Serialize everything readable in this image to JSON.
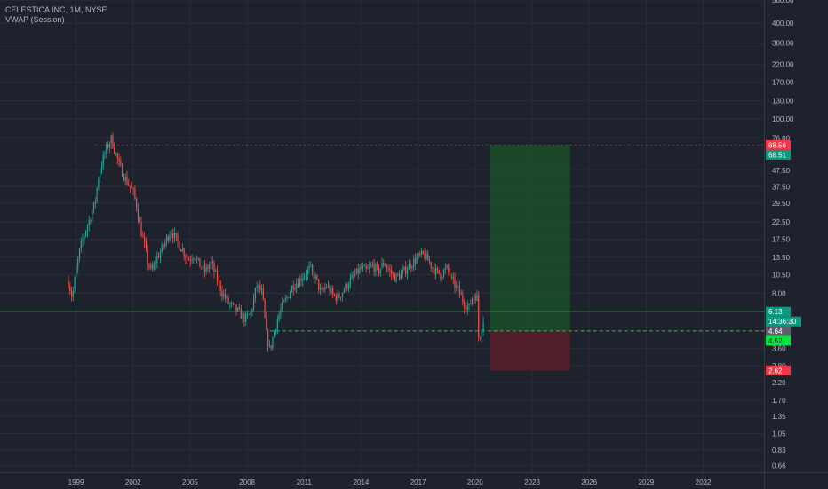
{
  "symbol": {
    "title": "CELESTICA INC, 1M, NYSE",
    "indicator": "VWAP (Session)"
  },
  "colors": {
    "background": "#1e222d",
    "up": "#26a69a",
    "down": "#ef5350",
    "grid": "#2a2e39",
    "axis_text": "#b2b5be",
    "profit_zone": "#1b4d2b",
    "loss_zone": "#5a1f2a",
    "resistance_line": "#c2185b",
    "support_line": "#4caf50",
    "current_price_line": "#4caf50"
  },
  "chart_data": {
    "type": "candlestick",
    "y_scale": "log",
    "ylim": [
      0.6,
      560
    ],
    "xlim": [
      1995,
      2035.2
    ],
    "y_ticks": [
      "560.00",
      "400.00",
      "300.00",
      "220.00",
      "170.00",
      "130.00",
      "100.00",
      "76.00",
      "47.50",
      "37.50",
      "29.50",
      "22.50",
      "17.50",
      "13.50",
      "10.50",
      "8.00",
      "3.60",
      "2.80",
      "2.20",
      "1.70",
      "1.35",
      "1.05",
      "0.83",
      "0.66"
    ],
    "x_ticks": [
      {
        "label": "1999",
        "x": 1999
      },
      {
        "label": "2002",
        "x": 2002
      },
      {
        "label": "2005",
        "x": 2005
      },
      {
        "label": "2008",
        "x": 2008
      },
      {
        "label": "2011",
        "x": 2011
      },
      {
        "label": "2014",
        "x": 2014
      },
      {
        "label": "2017",
        "x": 2017
      },
      {
        "label": "2020",
        "x": 2020
      },
      {
        "label": "2023",
        "x": 2023
      },
      {
        "label": "2026",
        "x": 2026
      },
      {
        "label": "2029",
        "x": 2029
      },
      {
        "label": "2032",
        "x": 2032
      }
    ],
    "price_path": [
      [
        1998.6,
        9.5
      ],
      [
        1998.8,
        7.5
      ],
      [
        1999.0,
        11
      ],
      [
        1999.2,
        15
      ],
      [
        1999.5,
        20
      ],
      [
        1999.8,
        25
      ],
      [
        2000.0,
        30
      ],
      [
        2000.2,
        45
      ],
      [
        2000.4,
        55
      ],
      [
        2000.6,
        65
      ],
      [
        2000.85,
        75
      ],
      [
        2001.1,
        60
      ],
      [
        2001.3,
        50
      ],
      [
        2001.6,
        42
      ],
      [
        2001.8,
        38
      ],
      [
        2002.0,
        35
      ],
      [
        2002.2,
        28
      ],
      [
        2002.4,
        20
      ],
      [
        2002.6,
        16
      ],
      [
        2002.8,
        12
      ],
      [
        2003.0,
        11
      ],
      [
        2003.2,
        13
      ],
      [
        2003.5,
        15
      ],
      [
        2003.8,
        18
      ],
      [
        2004.0,
        20
      ],
      [
        2004.3,
        17
      ],
      [
        2004.6,
        15
      ],
      [
        2004.9,
        13
      ],
      [
        2005.2,
        14
      ],
      [
        2005.5,
        12
      ],
      [
        2005.8,
        11
      ],
      [
        2006.1,
        12.5
      ],
      [
        2006.4,
        10
      ],
      [
        2006.7,
        8
      ],
      [
        2007.0,
        7
      ],
      [
        2007.3,
        6.5
      ],
      [
        2007.6,
        6
      ],
      [
        2007.9,
        5.5
      ],
      [
        2008.2,
        6
      ],
      [
        2008.5,
        9
      ],
      [
        2008.8,
        8
      ],
      [
        2009.0,
        4.5
      ],
      [
        2009.2,
        3.5
      ],
      [
        2009.5,
        5
      ],
      [
        2009.8,
        6.5
      ],
      [
        2010.1,
        7.5
      ],
      [
        2010.4,
        9
      ],
      [
        2010.7,
        9.5
      ],
      [
        2011.0,
        10.5
      ],
      [
        2011.3,
        11.5
      ],
      [
        2011.6,
        10
      ],
      [
        2011.9,
        8
      ],
      [
        2012.2,
        9
      ],
      [
        2012.5,
        7.8
      ],
      [
        2012.8,
        7.5
      ],
      [
        2013.1,
        8.5
      ],
      [
        2013.4,
        9.5
      ],
      [
        2013.7,
        10.5
      ],
      [
        2014.0,
        11.5
      ],
      [
        2014.3,
        11
      ],
      [
        2014.6,
        12
      ],
      [
        2014.9,
        11
      ],
      [
        2015.2,
        12.5
      ],
      [
        2015.5,
        11
      ],
      [
        2015.8,
        10
      ],
      [
        2016.1,
        10.5
      ],
      [
        2016.4,
        11.5
      ],
      [
        2016.7,
        12.5
      ],
      [
        2017.0,
        13.5
      ],
      [
        2017.3,
        14
      ],
      [
        2017.6,
        12.5
      ],
      [
        2017.9,
        11
      ],
      [
        2018.2,
        10.5
      ],
      [
        2018.5,
        11.5
      ],
      [
        2018.8,
        9.5
      ],
      [
        2019.1,
        8.5
      ],
      [
        2019.4,
        7
      ],
      [
        2019.7,
        6.5
      ],
      [
        2019.9,
        8
      ],
      [
        2020.1,
        7.5
      ],
      [
        2020.2,
        3.8
      ],
      [
        2020.3,
        4.8
      ],
      [
        2020.4,
        5.2
      ],
      [
        2020.5,
        6.1
      ]
    ],
    "horizontal_lines": [
      {
        "name": "resistance",
        "price": 68.56,
        "x_start": 2000.0,
        "style": "dashed",
        "color": "#c2185b"
      },
      {
        "name": "current-price",
        "price": 6.13,
        "x_start": 1995.0,
        "style": "solid",
        "color": "#4caf50"
      },
      {
        "name": "entry",
        "price": 4.64,
        "x_start": 2009.2,
        "style": "dashed",
        "color": "#4caf50"
      }
    ],
    "position": {
      "x_start": 2020.8,
      "x_end": 2025.0,
      "target": 68.51,
      "entry": 4.64,
      "stop": 2.62
    },
    "price_labels": [
      {
        "text": "68.56",
        "price": 68.56,
        "bg": "#f23645",
        "fg": "#ffffff"
      },
      {
        "text": "68.51",
        "price": 68.51,
        "offset": 11,
        "bg": "#089981",
        "fg": "#ffffff"
      },
      {
        "text": "6.13",
        "price": 6.13,
        "bg": "#089981",
        "fg": "#ffffff"
      },
      {
        "text": "14:36:30",
        "price": 6.13,
        "offset": 11,
        "bg": "#089981",
        "fg": "#ffffff"
      },
      {
        "text": "4.64",
        "price": 4.64,
        "bg": "#5d606b",
        "fg": "#ffffff"
      },
      {
        "text": "4.52",
        "price": 4.52,
        "offset": 9,
        "bg": "#00e640",
        "fg": "#131722"
      },
      {
        "text": "2.62",
        "price": 2.62,
        "bg": "#f23645",
        "fg": "#ffffff"
      }
    ]
  }
}
